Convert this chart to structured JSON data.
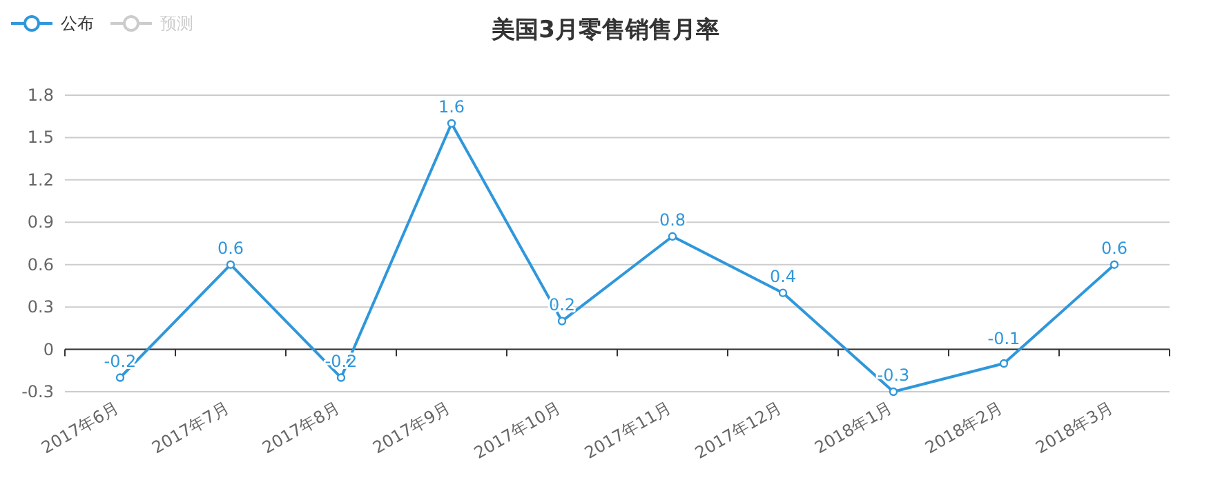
{
  "chart_data": {
    "type": "line",
    "title": "美国3月零售销售月率",
    "categories": [
      "2017年6月",
      "2017年7月",
      "2017年8月",
      "2017年9月",
      "2017年10月",
      "2017年11月",
      "2017年12月",
      "2018年1月",
      "2018年2月",
      "2018年3月"
    ],
    "series": [
      {
        "name": "公布",
        "color": "#2f97db",
        "values": [
          -0.2,
          0.6,
          -0.2,
          1.6,
          0.2,
          0.8,
          0.4,
          -0.3,
          -0.1,
          0.6
        ]
      },
      {
        "name": "预测",
        "color": "#cccccc",
        "values": [
          null,
          null,
          null,
          null,
          null,
          null,
          null,
          null,
          null,
          null
        ]
      }
    ],
    "ylim": [
      -0.3,
      1.8
    ],
    "yticks": [
      -0.3,
      0,
      0.3,
      0.6,
      0.9,
      1.2,
      1.5,
      1.8
    ],
    "grid": "y",
    "legend": "top left",
    "data_labels": true,
    "marker": "circle",
    "line_style": "solid"
  }
}
